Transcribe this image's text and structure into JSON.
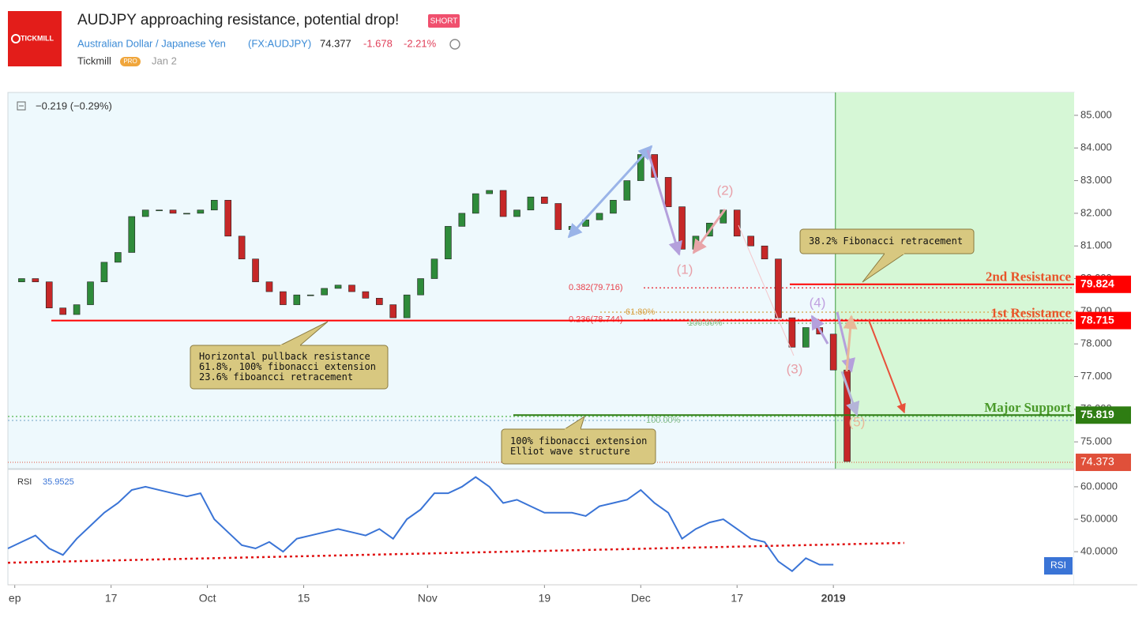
{
  "header": {
    "logo": "TICKMILL",
    "title": "AUDJPY approaching resistance, potential drop!",
    "badge": "SHORT",
    "instrument": "Australian Dollar / Japanese Yen",
    "symbol": "(FX:AUDJPY)",
    "last": "74.377",
    "change": "-1.678",
    "change_pct": "-2.21%",
    "author": "Tickmill",
    "author_badge": "PRO",
    "date": "Jan 2"
  },
  "chart": {
    "legend": "−0.219 (−0.29%)",
    "xlim": [
      0,
      155
    ],
    "xticks": [
      {
        "value": 1,
        "label": "ep"
      },
      {
        "value": 15,
        "label": "17"
      },
      {
        "value": 29,
        "label": "Oct"
      },
      {
        "value": 43,
        "label": "15"
      },
      {
        "value": 61,
        "label": "Nov"
      },
      {
        "value": 78,
        "label": "19"
      },
      {
        "value": 92,
        "label": "Dec"
      },
      {
        "value": 106,
        "label": "17"
      },
      {
        "value": 120,
        "label": "2019"
      }
    ],
    "price": {
      "ylim": [
        74.18,
        85.7
      ],
      "yticks": [
        {
          "value": 75,
          "label": "75.000"
        },
        {
          "value": 76,
          "label": "76.000"
        },
        {
          "value": 77,
          "label": "77.000"
        },
        {
          "value": 78,
          "label": "78.000"
        },
        {
          "value": 79,
          "label": "79.000"
        },
        {
          "value": 80,
          "label": "80.000"
        },
        {
          "value": 81,
          "label": "81.000"
        },
        {
          "value": 82,
          "label": "82.000"
        },
        {
          "value": 83,
          "label": "83.000"
        },
        {
          "value": 84,
          "label": "84.000"
        },
        {
          "value": 85,
          "label": "85.000"
        }
      ],
      "up_color": "#2e8b3a",
      "down_color": "#c62828",
      "x": [
        0,
        2,
        4,
        6,
        8,
        10,
        12,
        14,
        16,
        18,
        20,
        22,
        24,
        26,
        28,
        30,
        32,
        34,
        36,
        38,
        40,
        42,
        44,
        46,
        48,
        50,
        52,
        54,
        56,
        58,
        60,
        62,
        64,
        66,
        68,
        70,
        72,
        74,
        76,
        78,
        80,
        82,
        84,
        86,
        88,
        90,
        92,
        94,
        96,
        98,
        100,
        102,
        104,
        106,
        108,
        110,
        112,
        114,
        116,
        118,
        120,
        122
      ],
      "values": [
        79.9,
        80.0,
        79.9,
        79.1,
        78.9,
        79.2,
        79.9,
        80.5,
        80.8,
        81.9,
        82.1,
        82.1,
        82.0,
        82.0,
        82.1,
        82.4,
        81.3,
        80.6,
        79.9,
        79.6,
        79.2,
        79.5,
        79.5,
        79.7,
        79.8,
        79.6,
        79.4,
        79.2,
        78.8,
        79.5,
        80.0,
        80.6,
        81.6,
        82.0,
        82.6,
        82.7,
        81.9,
        82.1,
        82.5,
        82.3,
        81.5,
        81.6,
        81.8,
        82.0,
        82.4,
        83.0,
        83.8,
        83.1,
        82.2,
        80.9,
        81.3,
        81.7,
        82.1,
        81.3,
        81.0,
        80.6,
        78.8,
        77.9,
        78.5,
        78.3,
        77.2,
        74.4
      ]
    },
    "rsi": {
      "name": "RSI",
      "last": "35.9525",
      "badge": "RSI",
      "color": "#3a74d6",
      "ylim": [
        29.8,
        65.1
      ],
      "yticks": [
        {
          "value": 40,
          "label": "40.0000"
        },
        {
          "value": 50,
          "label": "50.0000"
        },
        {
          "value": 60,
          "label": "60.0000"
        }
      ],
      "x": [
        0,
        2,
        4,
        6,
        8,
        10,
        12,
        14,
        16,
        18,
        20,
        22,
        24,
        26,
        28,
        30,
        32,
        34,
        36,
        38,
        40,
        42,
        44,
        46,
        48,
        50,
        52,
        54,
        56,
        58,
        60,
        62,
        64,
        66,
        68,
        70,
        72,
        74,
        76,
        78,
        80,
        82,
        84,
        86,
        88,
        90,
        92,
        94,
        96,
        98,
        100,
        102,
        104,
        106,
        108,
        110,
        112,
        114,
        116,
        118,
        120,
        122
      ],
      "values": [
        41,
        43,
        45,
        41,
        39,
        44,
        48,
        52,
        55,
        59,
        60,
        59,
        58,
        57,
        58,
        50,
        46,
        42,
        41,
        43,
        40,
        44,
        45,
        46,
        47,
        46,
        45,
        47,
        44,
        50,
        53,
        58,
        58,
        60,
        63,
        60,
        55,
        56,
        54,
        52,
        52,
        52,
        51,
        54,
        55,
        56,
        59,
        55,
        52,
        44,
        47,
        49,
        50,
        47,
        44,
        43,
        37,
        34,
        38,
        36,
        36,
        null
      ],
      "trendline": {
        "x": [
          0,
          130.3
        ],
        "values": [
          36.6,
          42.7
        ],
        "color": "#e01010"
      }
    },
    "levels": [
      {
        "label": "2nd Resistance",
        "value": 79.824,
        "value_label": "79.824",
        "color": "#ff0000",
        "text_color": "#e8542a"
      },
      {
        "label": "1st Resistance",
        "value": 78.715,
        "value_label": "78.715",
        "color": "#ff0000",
        "text_color": "#e8542a"
      },
      {
        "label": "Major Support",
        "value": 75.819,
        "value_label": "75.819",
        "color": "#2e7d12",
        "text_color": "#4a9a2a"
      }
    ],
    "current": {
      "value": 74.373,
      "value_label": "74.373",
      "color": "#e0503a"
    },
    "fib_levels": [
      {
        "label": "0.382(79.716)",
        "value": 79.716
      },
      {
        "label": "0.236(78.744)",
        "value": 78.744
      }
    ],
    "fib_texts": [
      "61.80%",
      "100.00%",
      "100.00%"
    ],
    "waves": [
      "(1)",
      "(2)",
      "(3)",
      "(4)",
      "(5)"
    ],
    "callouts": [
      {
        "lines": [
          "38.2% Fibonacci retracement"
        ]
      },
      {
        "lines": [
          "Horizontal pullback resistance",
          "61.8%, 100% fibonacci extension",
          "23.6% fiboancci retracement"
        ]
      },
      {
        "lines": [
          "100% fibonacci extension",
          "Elliot wave structure"
        ]
      }
    ],
    "forecast_start": 120.3
  }
}
